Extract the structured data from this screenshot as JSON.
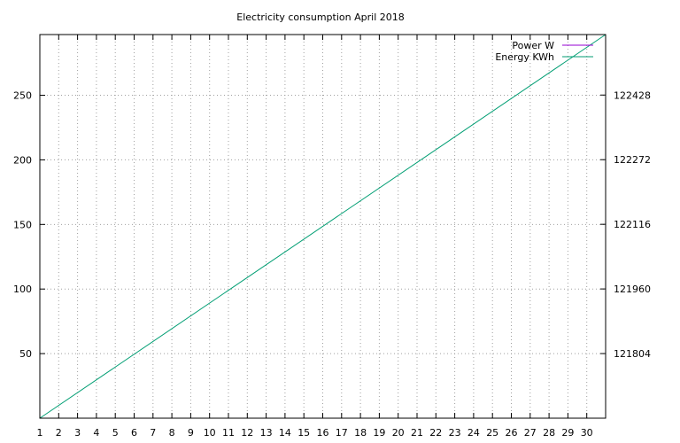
{
  "chart_data": {
    "type": "line",
    "title": "Electricity consumption April 2018",
    "x": {
      "range": [
        1,
        31
      ],
      "ticks": [
        1,
        2,
        3,
        4,
        5,
        6,
        7,
        8,
        9,
        10,
        11,
        12,
        13,
        14,
        15,
        16,
        17,
        18,
        19,
        20,
        21,
        22,
        23,
        24,
        25,
        26,
        27,
        28,
        29,
        30
      ]
    },
    "y_left": {
      "range": [
        0,
        297
      ],
      "ticks": [
        50,
        100,
        150,
        200,
        250
      ]
    },
    "y_right": {
      "range": [
        121648,
        122574
      ],
      "ticks": [
        121804,
        121960,
        122116,
        122272,
        122428
      ]
    },
    "grid": true,
    "legend_position": "top-right",
    "series": [
      {
        "name": "Power W",
        "color": "#9400d3",
        "axis": "left",
        "x": [],
        "y": []
      },
      {
        "name": "Energy KWh",
        "color": "#009e73",
        "axis": "right",
        "x": [
          1,
          31
        ],
        "y": [
          121648,
          122574
        ]
      }
    ]
  }
}
